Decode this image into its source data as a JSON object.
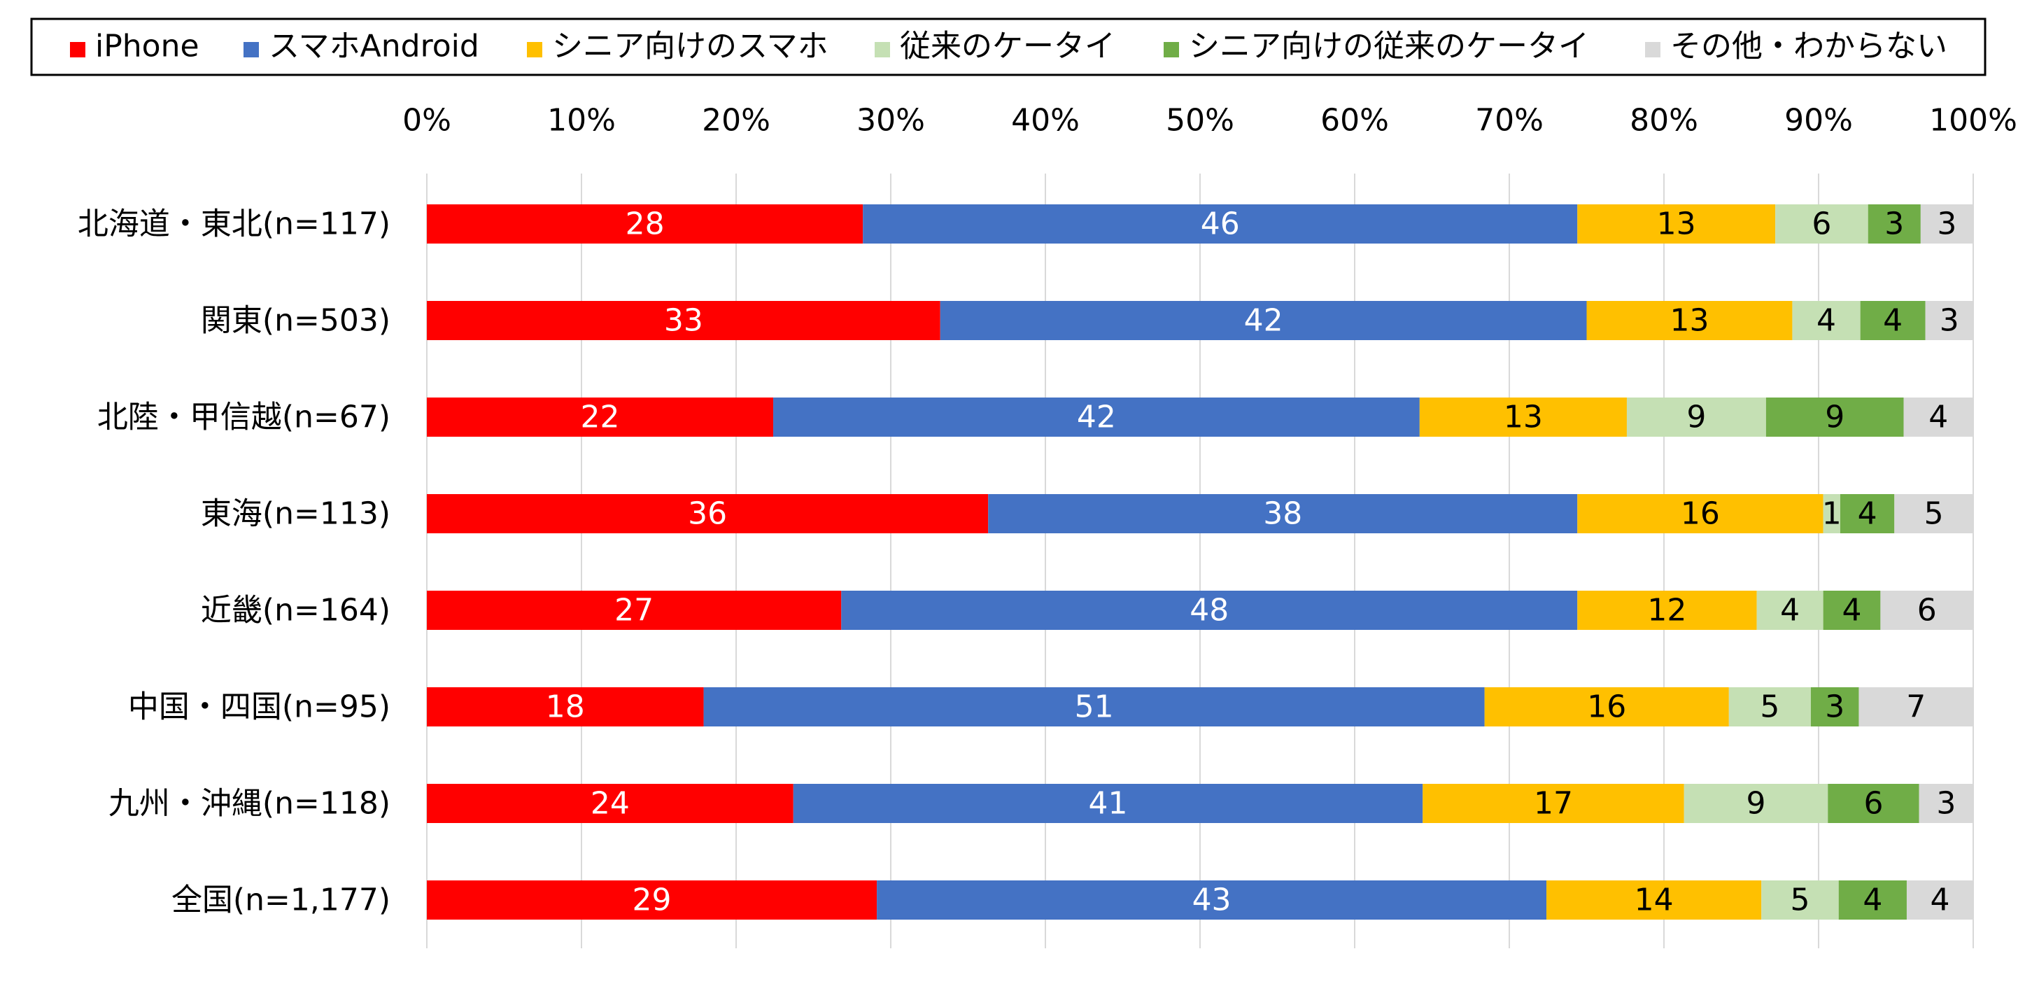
{
  "chart_data": {
    "type": "bar",
    "orientation": "horizontal",
    "stacked": "percent",
    "title": "",
    "xlabel": "",
    "ylabel": "",
    "xlim": [
      0,
      100
    ],
    "x_ticks": [
      "0%",
      "10%",
      "20%",
      "30%",
      "40%",
      "50%",
      "60%",
      "70%",
      "80%",
      "90%",
      "100%"
    ],
    "grid": true,
    "legend_position": "top",
    "categories": [
      "北海道・東北(n=117)",
      "関東(n=503)",
      "北陸・甲信越(n=67)",
      "東海(n=113)",
      "近畿(n=164)",
      "中国・四国(n=95)",
      "九州・沖縄(n=118)",
      "全国(n=1,177)"
    ],
    "series": [
      {
        "name": "iPhone",
        "color": "#ff0000",
        "label_color": "#ffffff",
        "values": [
          28.2,
          33.2,
          22.4,
          36.3,
          26.8,
          17.9,
          23.7,
          29.1
        ],
        "labels": [
          "28",
          "33",
          "22",
          "36",
          "27",
          "18",
          "24",
          "29"
        ]
      },
      {
        "name": "スマホAndroid",
        "color": "#4472c4",
        "label_color": "#ffffff",
        "values": [
          46.2,
          41.8,
          41.8,
          38.1,
          47.6,
          50.5,
          40.7,
          43.3
        ],
        "labels": [
          "46",
          "42",
          "42",
          "38",
          "48",
          "51",
          "41",
          "43"
        ]
      },
      {
        "name": "シニア向けのスマホ",
        "color": "#ffc000",
        "label_color": "#000000",
        "values": [
          12.8,
          13.3,
          13.4,
          15.9,
          11.6,
          15.8,
          16.9,
          13.9
        ],
        "labels": [
          "13",
          "13",
          "13",
          "16",
          "12",
          "16",
          "17",
          "14"
        ]
      },
      {
        "name": "従来のケータイ",
        "color": "#c5e0b4",
        "label_color": "#000000",
        "values": [
          6.0,
          4.4,
          9.0,
          1.1,
          4.3,
          5.3,
          9.3,
          5.0
        ],
        "labels": [
          "6",
          "4",
          "9",
          "1",
          "4",
          "5",
          "9",
          "5"
        ]
      },
      {
        "name": "シニア向けの従来のケータイ",
        "color": "#70ad47",
        "label_color": "#000000",
        "values": [
          3.4,
          4.2,
          8.9,
          3.5,
          3.7,
          3.1,
          5.9,
          4.4
        ],
        "labels": [
          "3",
          "4",
          "9",
          "4",
          "4",
          "3",
          "6",
          "4"
        ]
      },
      {
        "name": "その他・わからない",
        "color": "#d9d9d9",
        "label_color": "#000000",
        "values": [
          3.4,
          3.1,
          4.5,
          5.1,
          6.0,
          7.4,
          3.5,
          4.3
        ],
        "labels": [
          "3",
          "3",
          "4",
          "5",
          "6",
          "7",
          "3",
          "4"
        ]
      }
    ]
  }
}
